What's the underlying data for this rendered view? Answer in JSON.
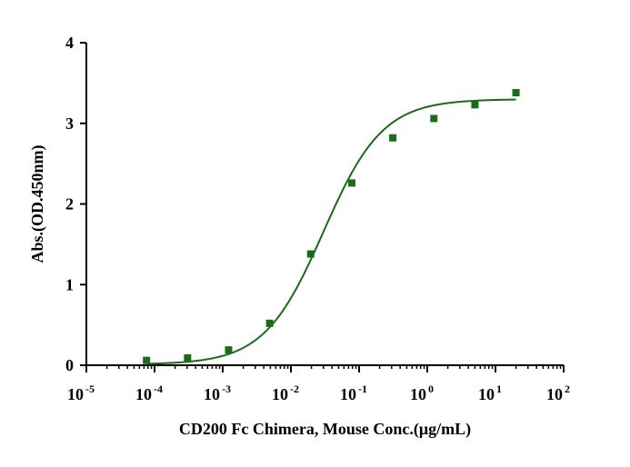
{
  "chart_data": {
    "type": "scatter",
    "title": "",
    "xlabel": "CD200 Fc Chimera, Mouse Conc.(μg/mL)",
    "ylabel": "Abs.(OD.450nm)",
    "x_scale": "log10",
    "xlim_log10": [
      -5,
      2
    ],
    "ylim": [
      0,
      4
    ],
    "x_ticks": [
      {
        "base": "10",
        "exp": "-5",
        "value": -5
      },
      {
        "base": "10",
        "exp": "-4",
        "value": -4
      },
      {
        "base": "10",
        "exp": "-3",
        "value": -3
      },
      {
        "base": "10",
        "exp": "-2",
        "value": -2
      },
      {
        "base": "10",
        "exp": "-1",
        "value": -1
      },
      {
        "base": "10",
        "exp": "0",
        "value": 0
      },
      {
        "base": "10",
        "exp": "1",
        "value": 1
      },
      {
        "base": "10",
        "exp": "2",
        "value": 2
      }
    ],
    "y_ticks": [
      "0",
      "1",
      "2",
      "3",
      "4"
    ],
    "series": [
      {
        "name": "CD200 Fc Chimera, Mouse",
        "color": "#1a6b1a",
        "marker": "square",
        "x": [
          7.63e-05,
          0.000305,
          0.00122,
          0.00488,
          0.0195,
          0.0781,
          0.3125,
          1.25,
          5,
          20
        ],
        "y": [
          0.06,
          0.09,
          0.19,
          0.52,
          1.38,
          2.26,
          2.82,
          3.06,
          3.23,
          3.38
        ]
      }
    ],
    "fit_curve": {
      "model": "4PL",
      "bottom": 0.01,
      "top": 3.3,
      "ec50": 0.03,
      "hill": 1.0,
      "x_range": [
        7.63e-05,
        20
      ],
      "color": "#1a6b1a"
    }
  }
}
